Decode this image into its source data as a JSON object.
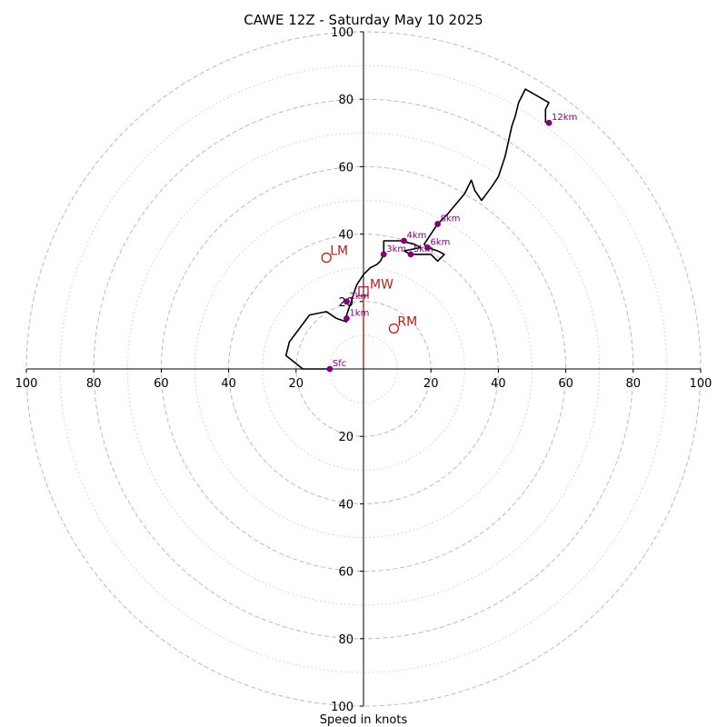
{
  "chart_data": {
    "type": "line",
    "title": "CAWE 12Z - Saturday May 10 2025",
    "xlabel": "Speed in knots",
    "units": "knots",
    "range": [
      -100,
      100
    ],
    "ring_major": [
      20,
      40,
      60,
      80,
      100
    ],
    "ring_minor": [
      10,
      30,
      50,
      70,
      90
    ],
    "tick_labels": {
      "x_left": [
        "100",
        "80",
        "60",
        "40",
        "20"
      ],
      "x_right": [
        "20",
        "40",
        "60",
        "80",
        "100"
      ],
      "y_up": [
        "20",
        "40",
        "60",
        "80",
        "100"
      ],
      "y_down": [
        "20",
        "40",
        "60",
        "80",
        "100"
      ]
    },
    "trace": {
      "u": [
        -10,
        -18,
        -23,
        -22,
        -19,
        -16,
        -11,
        -8,
        -5,
        -5,
        -4,
        -3,
        -2,
        0,
        2,
        4,
        5,
        6,
        6,
        11,
        15,
        17,
        12,
        14,
        14,
        20,
        22,
        24,
        22,
        19,
        18,
        20,
        22,
        25,
        30,
        32,
        33,
        35,
        38,
        40,
        42,
        44,
        45,
        46,
        48,
        55,
        54,
        54
      ],
      "v": [
        0,
        0,
        4,
        8,
        12,
        16,
        17,
        15,
        14,
        16,
        19,
        22,
        25,
        28,
        30,
        31,
        32,
        34,
        38,
        38,
        37,
        36,
        35,
        34,
        34,
        34,
        32,
        34,
        35,
        36,
        37,
        40,
        43,
        46,
        52,
        56,
        53,
        50,
        54,
        57,
        63,
        72,
        75,
        79,
        83,
        79,
        77,
        73
      ]
    },
    "height_markers": [
      {
        "label": "Sfc",
        "u": -10,
        "v": 0
      },
      {
        "label": "1km",
        "u": -5,
        "v": 15
      },
      {
        "label": "2km",
        "u": -5,
        "v": 20
      },
      {
        "label": "3km",
        "u": 6,
        "v": 34
      },
      {
        "label": "4km",
        "u": 12,
        "v": 38
      },
      {
        "label": "5km",
        "u": 14,
        "v": 34
      },
      {
        "label": "6km",
        "u": 19,
        "v": 36
      },
      {
        "label": "8km",
        "u": 22,
        "v": 43
      },
      {
        "label": "12km",
        "u": 55,
        "v": 73
      }
    ],
    "height_label_color": "#800080",
    "motion_color": "#b22222",
    "storm_motion": {
      "bunkers_left": {
        "label": "LM",
        "u": -11,
        "v": 33
      },
      "bunkers_right": {
        "label": "RM",
        "u": 9,
        "v": 12
      },
      "mean_wind": {
        "label": "MW",
        "u": 0,
        "v": 23
      },
      "mean_wind_line_to": {
        "u": 0,
        "v": 0
      }
    }
  }
}
